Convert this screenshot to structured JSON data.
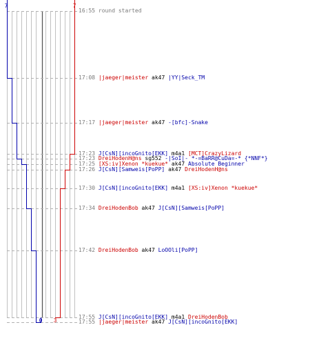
{
  "round": {
    "blue_start": "7",
    "red_start": "7",
    "blue_final": "0",
    "red_final": "3",
    "colors": {
      "red": "#cc0000",
      "blue": "#0000aa",
      "time": "#7a7a7a",
      "grid": "#c0c0c0",
      "center": "#555555"
    }
  },
  "events": [
    {
      "time": "16:55",
      "kind": "note",
      "text": "round started",
      "blue": 7,
      "red": 7
    },
    {
      "time": "17:08",
      "kind": "kill",
      "killer": "|jaeger|meister",
      "killer_team": "red",
      "weapon": "ak47",
      "victim": "|YY|Seck_TM",
      "victim_team": "blue",
      "blue": 6,
      "red": 7
    },
    {
      "time": "17:17",
      "kind": "kill",
      "killer": "|jaeger|meister",
      "killer_team": "red",
      "weapon": "ak47",
      "victim": "-[bfc]-Snake",
      "victim_team": "blue",
      "blue": 5,
      "red": 7
    },
    {
      "time": "17:23",
      "kind": "kill",
      "killer": "J[CsN][incoGnito[EKK]",
      "killer_team": "blue",
      "weapon": "m4a1",
      "victim": "[MCT]CrazyLizard",
      "victim_team": "red",
      "blue": 5,
      "red": 6
    },
    {
      "time": "17:23",
      "kind": "kill",
      "killer": "DreiHodenH@ns",
      "killer_team": "red",
      "weapon": "sg552",
      "victim": "-|SoI|- *-=BaRR@CuDa=-* {*NNF*}",
      "victim_team": "blue",
      "blue": 4,
      "red": 6
    },
    {
      "time": "17:25",
      "kind": "kill",
      "killer": "[XS:iv]Xenon *kuekue*",
      "killer_team": "red",
      "weapon": "ak47",
      "victim": "Absolute Beginner",
      "victim_team": "blue",
      "blue": 3,
      "red": 6
    },
    {
      "time": "17:26",
      "kind": "kill",
      "killer": "J[CsN][Samweis[PoPP]",
      "killer_team": "blue",
      "weapon": "ak47",
      "victim": "DreiHodenH@ns",
      "victim_team": "red",
      "blue": 3,
      "red": 5
    },
    {
      "time": "17:30",
      "kind": "kill",
      "killer": "J[CsN][incoGnito[EKK]",
      "killer_team": "blue",
      "weapon": "m4a1",
      "victim": "[XS:iv]Xenon *kuekue*",
      "victim_team": "red",
      "blue": 3,
      "red": 4
    },
    {
      "time": "17:34",
      "kind": "kill",
      "killer": "DreiHodenBob",
      "killer_team": "red",
      "weapon": "ak47",
      "victim": "J[CsN][Samweis[PoPP]",
      "victim_team": "blue",
      "blue": 2,
      "red": 4
    },
    {
      "time": "17:42",
      "kind": "kill",
      "killer": "DreiHodenBob",
      "killer_team": "red",
      "weapon": "ak47",
      "victim": "LoOOli[PoPP]",
      "victim_team": "blue",
      "blue": 1,
      "red": 4
    },
    {
      "time": "17:55",
      "kind": "kill",
      "killer": "J[CsN][incoGnito[EKK]",
      "killer_team": "blue",
      "weapon": "m4a1",
      "victim": "DreiHodenBob",
      "victim_team": "red",
      "blue": 1,
      "red": 3
    },
    {
      "time": "17:55",
      "kind": "kill",
      "killer": "|jaeger|meister",
      "killer_team": "red",
      "weapon": "ak47",
      "victim": "J[CsN][incoGnito[EKK]",
      "victim_team": "blue",
      "blue": 0,
      "red": 3
    }
  ]
}
